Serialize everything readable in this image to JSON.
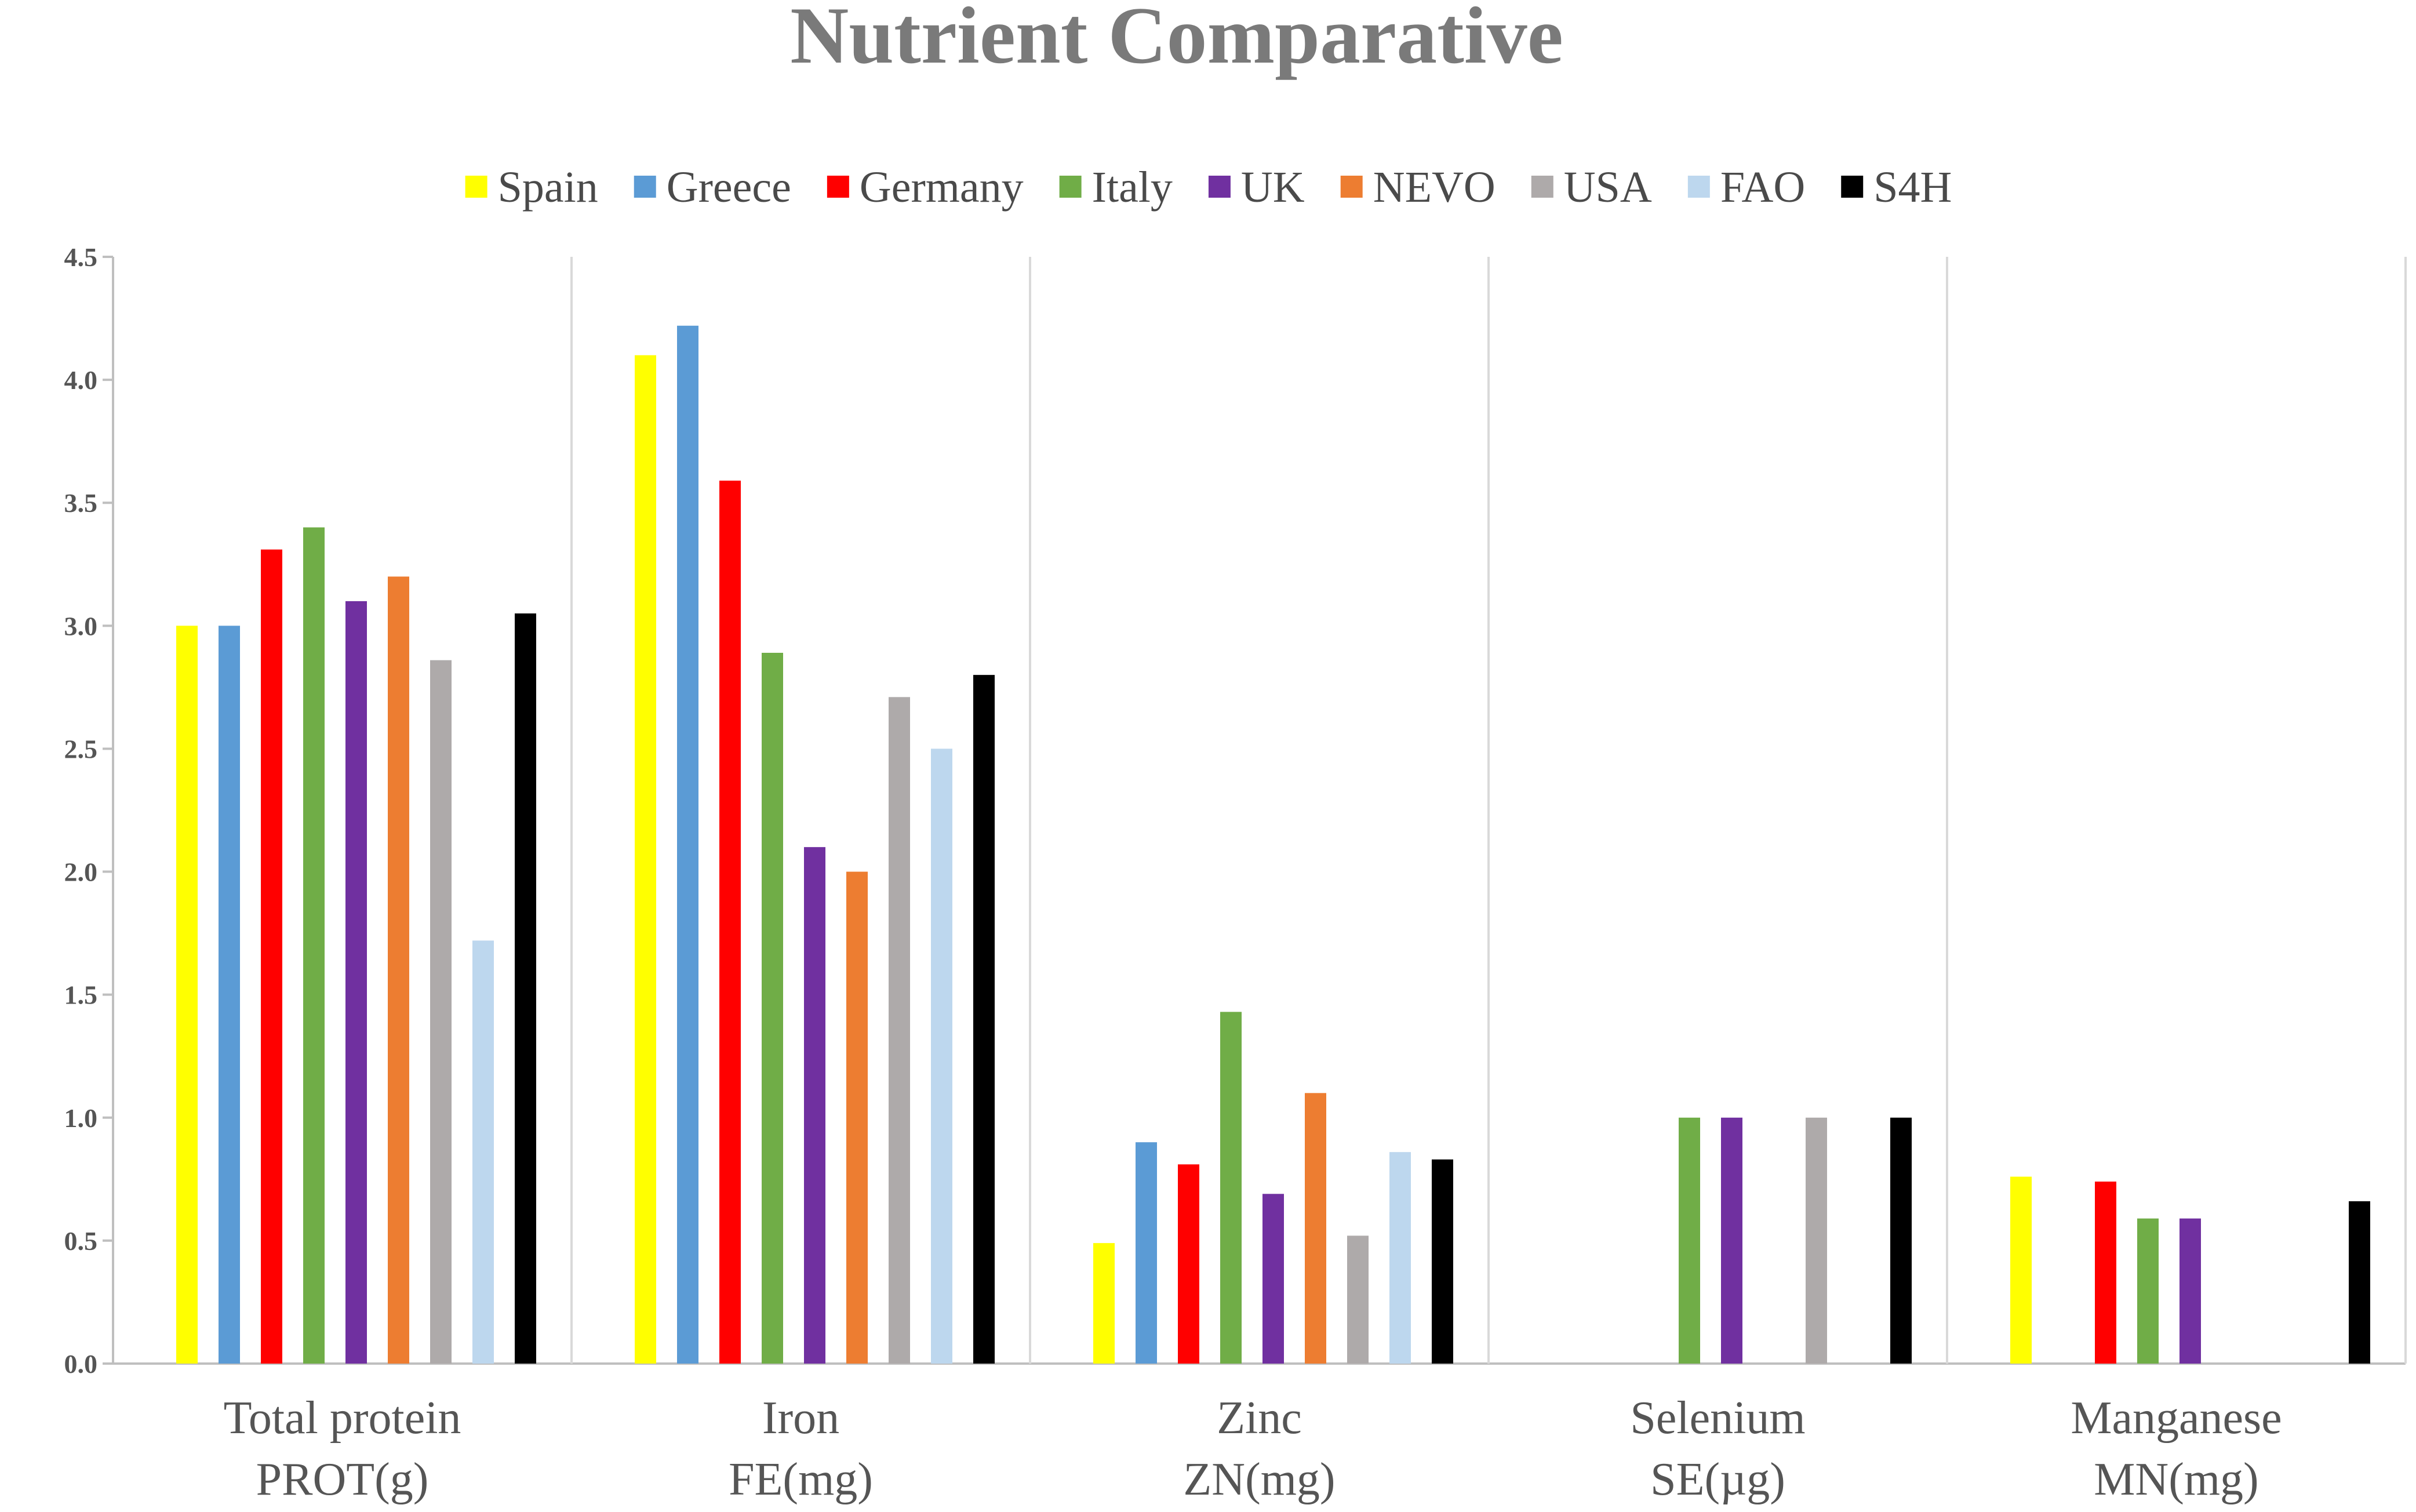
{
  "chart_data": {
    "type": "bar",
    "title": "Nutrient Comparative",
    "xlabel": "",
    "ylabel": "",
    "ylim": [
      0,
      4.5
    ],
    "yticks": [
      "0.0",
      "0.5",
      "1.0",
      "1.5",
      "2.0",
      "2.5",
      "3.0",
      "3.5",
      "4.0",
      "4.5"
    ],
    "grid": false,
    "legend_position": "top",
    "categories": [
      {
        "line1": "Total protein",
        "line2": "PROT(g)"
      },
      {
        "line1": "Iron",
        "line2": "FE(mg)"
      },
      {
        "line1": "Zinc",
        "line2": "ZN(mg)"
      },
      {
        "line1": "Selenium",
        "line2": "SE(µg)"
      },
      {
        "line1": "Manganese",
        "line2": "MN(mg)"
      }
    ],
    "series": [
      {
        "name": "Spain",
        "color": "#ffff00",
        "values": [
          3.0,
          4.1,
          0.49,
          null,
          0.76
        ]
      },
      {
        "name": "Greece",
        "color": "#5b9bd5",
        "values": [
          3.0,
          4.22,
          0.9,
          null,
          null
        ]
      },
      {
        "name": "Germany",
        "color": "#ff0000",
        "values": [
          3.31,
          3.59,
          0.81,
          null,
          0.74
        ]
      },
      {
        "name": "Italy",
        "color": "#70ad47",
        "values": [
          3.4,
          2.89,
          1.43,
          1.0,
          0.59
        ]
      },
      {
        "name": "UK",
        "color": "#7030a0",
        "values": [
          3.1,
          2.1,
          0.69,
          1.0,
          0.59
        ]
      },
      {
        "name": "NEVO",
        "color": "#ed7d31",
        "values": [
          3.2,
          2.0,
          1.1,
          null,
          null
        ]
      },
      {
        "name": "USA",
        "color": "#aeaaaa",
        "values": [
          2.86,
          2.71,
          0.52,
          1.0,
          null
        ]
      },
      {
        "name": "FAO",
        "color": "#bdd7ee",
        "values": [
          1.72,
          2.5,
          0.86,
          null,
          null
        ]
      },
      {
        "name": "S4H",
        "color": "#000000",
        "values": [
          3.05,
          2.8,
          0.83,
          1.0,
          0.66
        ]
      }
    ]
  }
}
